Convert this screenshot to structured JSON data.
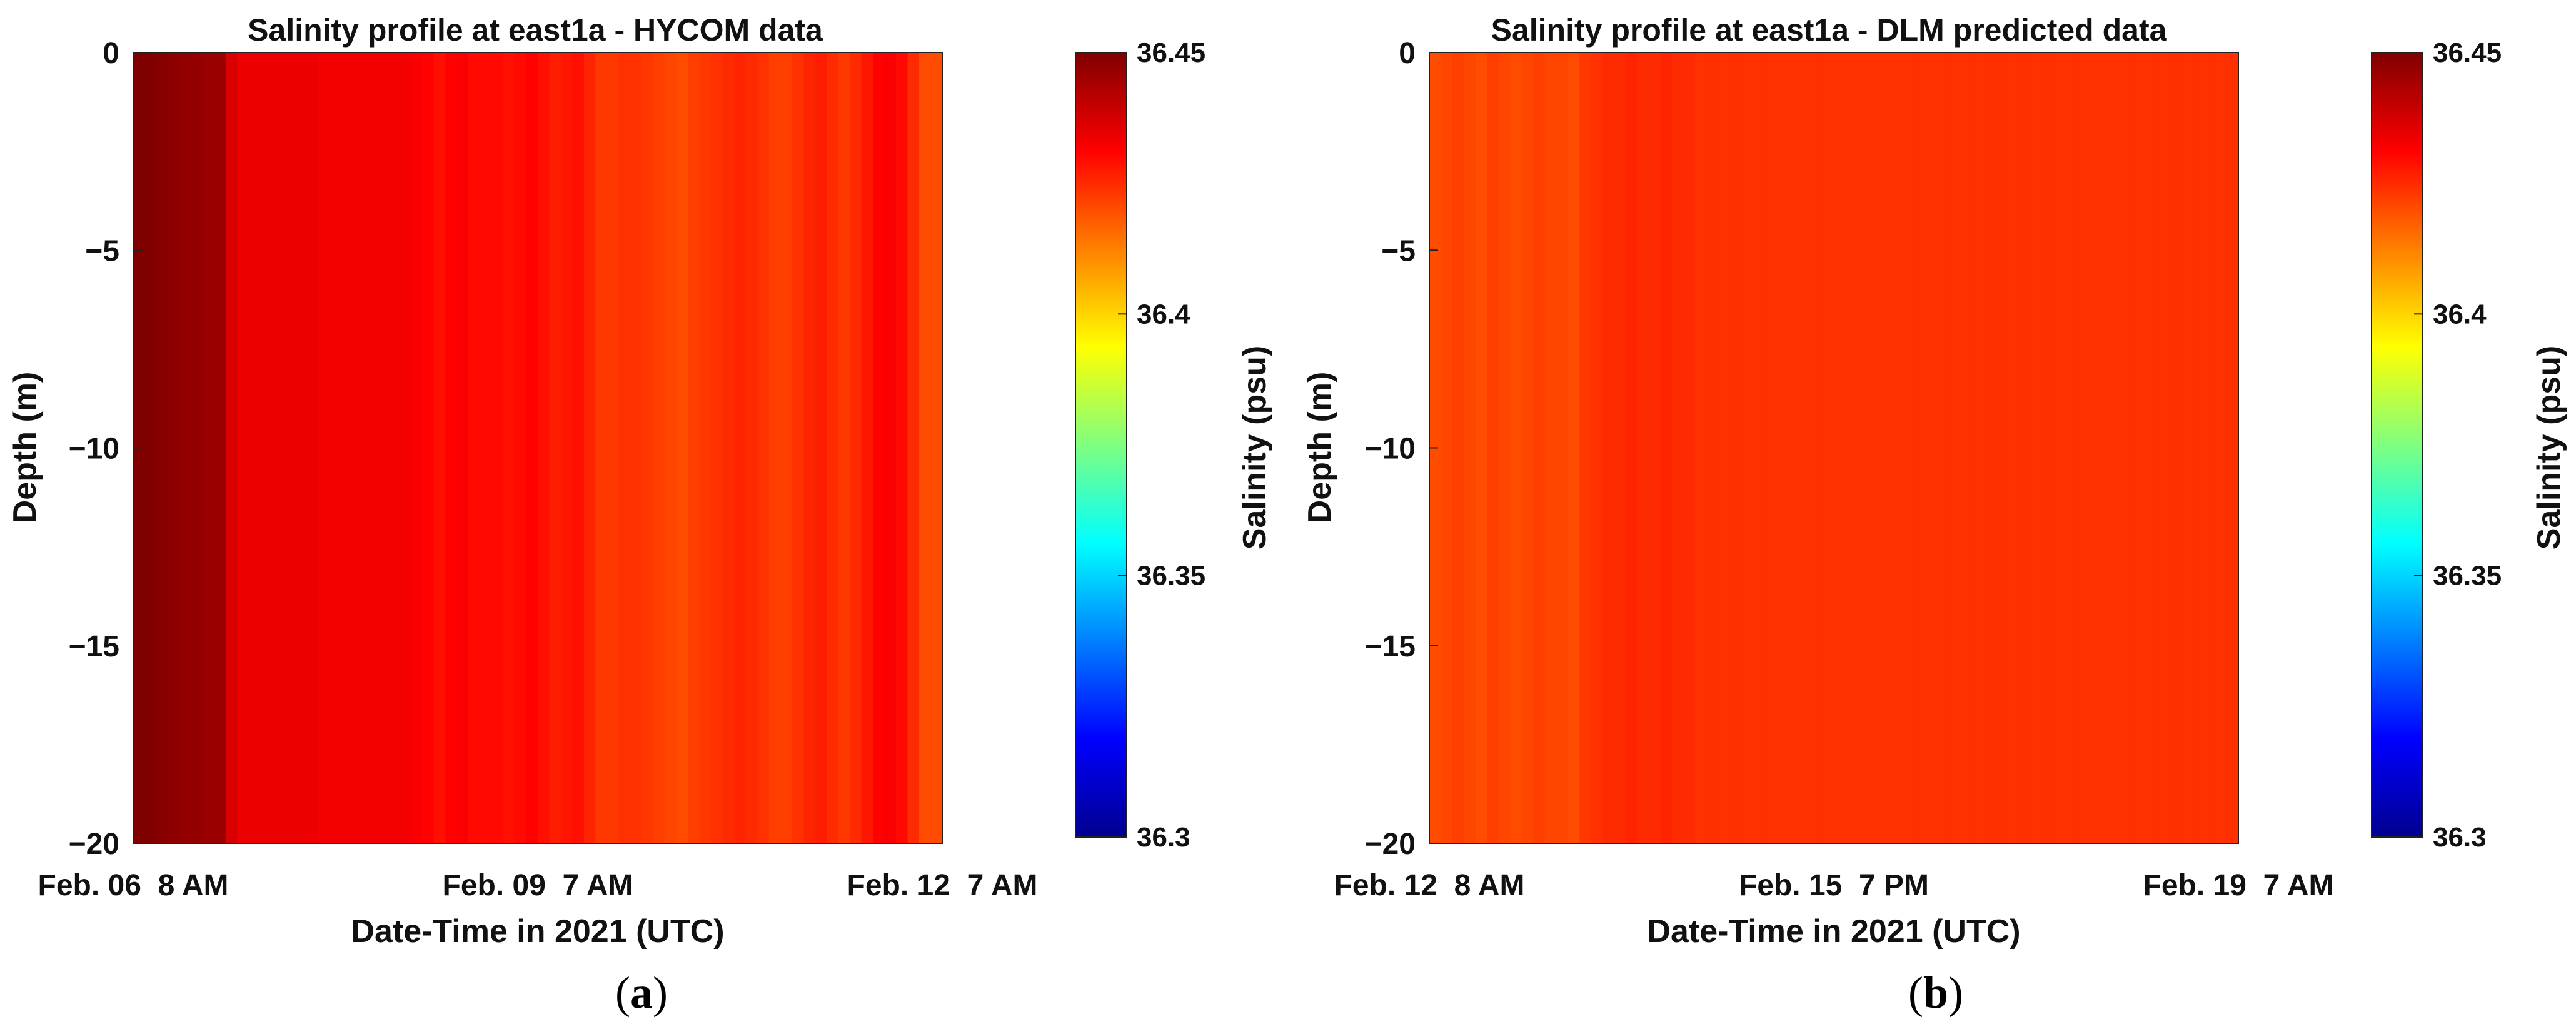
{
  "chart_data": [
    {
      "type": "heatmap",
      "panel_label": "a",
      "title": "Salinity profile at east1a - HYCOM data",
      "xlabel": "Date-Time in 2021 (UTC)",
      "ylabel": "Depth (m)",
      "x_ticks": [
        "Feb. 06  8 AM",
        "Feb. 09  7 AM",
        "Feb. 12  7 AM"
      ],
      "y_ticks": [
        0,
        -5,
        -10,
        -15,
        -20
      ],
      "ylim": [
        -20,
        0
      ],
      "colorbar": {
        "label": "Salinity (psu)",
        "ticks": [
          "36.45",
          "36.4",
          "36.35",
          "36.3"
        ],
        "range": [
          36.3,
          36.45
        ],
        "colormap": "jet"
      },
      "salinity_by_time": [
        36.45,
        36.45,
        36.449,
        36.448,
        36.447,
        36.447,
        36.446,
        36.446,
        36.437,
        36.434,
        36.434,
        36.434,
        36.434,
        36.434,
        36.434,
        36.434,
        36.433,
        36.433,
        36.433,
        36.433,
        36.433,
        36.433,
        36.433,
        36.433,
        36.432,
        36.431,
        36.429,
        36.431,
        36.432,
        36.43,
        36.43,
        36.43,
        36.429,
        36.43,
        36.431,
        36.429,
        36.427,
        36.428,
        36.429,
        36.426,
        36.423,
        36.423,
        36.424,
        36.424,
        36.423,
        36.422,
        36.421,
        36.42,
        36.422,
        36.423,
        36.424,
        36.425,
        36.426,
        36.425,
        36.424,
        36.422,
        36.422,
        36.424,
        36.426,
        36.427,
        36.425,
        36.423,
        36.425,
        36.428,
        36.431,
        36.432,
        36.43,
        36.425,
        36.42,
        36.42
      ]
    },
    {
      "type": "heatmap",
      "panel_label": "b",
      "title": "Salinity profile at east1a - DLM predicted data",
      "xlabel": "Date-Time in 2021 (UTC)",
      "ylabel": "Depth (m)",
      "x_ticks": [
        "Feb. 12  8 AM",
        "Feb. 15  7 PM",
        "Feb. 19  7 AM"
      ],
      "y_ticks": [
        0,
        -5,
        -10,
        -15,
        -20
      ],
      "ylim": [
        -20,
        0
      ],
      "colorbar": {
        "label": "Salinity (psu)",
        "ticks": [
          "36.45",
          "36.4",
          "36.35",
          "36.3"
        ],
        "range": [
          36.3,
          36.45
        ],
        "colormap": "jet"
      },
      "salinity_by_time": [
        36.42,
        36.421,
        36.422,
        36.421,
        36.42,
        36.422,
        36.421,
        36.42,
        36.421,
        36.422,
        36.421,
        36.421,
        36.42,
        36.423,
        36.424,
        36.425,
        36.425,
        36.426,
        36.425,
        36.425,
        36.426,
        36.425,
        36.425,
        36.424,
        36.424,
        36.424,
        36.424,
        36.424,
        36.424,
        36.424,
        36.424,
        36.424,
        36.424,
        36.424,
        36.424,
        36.424,
        36.424,
        36.424,
        36.424,
        36.424,
        36.424,
        36.424,
        36.424,
        36.424,
        36.424,
        36.424,
        36.424,
        36.424,
        36.424,
        36.424,
        36.424,
        36.424,
        36.424,
        36.424,
        36.424,
        36.424,
        36.424,
        36.424,
        36.424,
        36.424,
        36.424,
        36.424,
        36.424,
        36.424,
        36.424,
        36.424,
        36.424,
        36.424,
        36.424,
        36.424
      ]
    }
  ]
}
